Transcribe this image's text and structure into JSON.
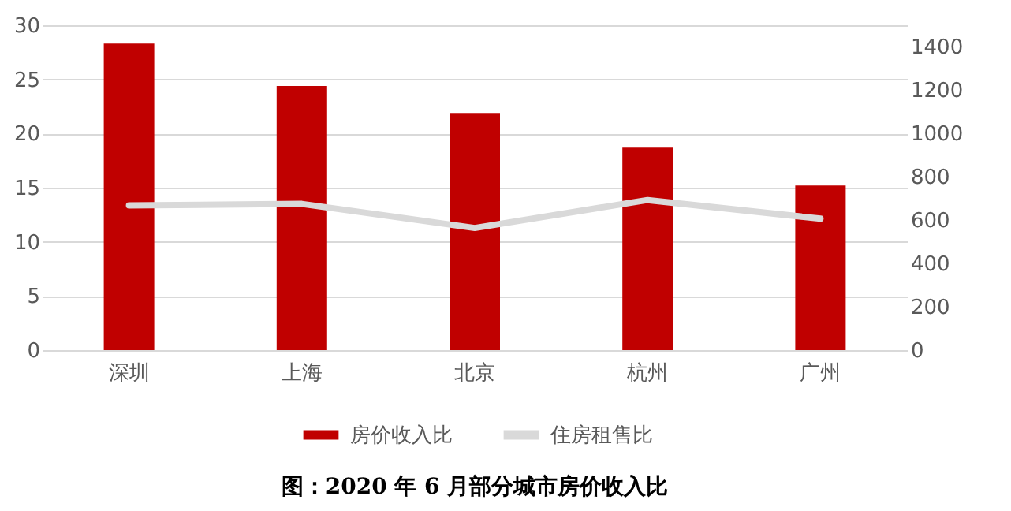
{
  "chart_data": {
    "type": "bar",
    "title": "图：2020 年 6 月部分城市房价收入比",
    "categories": [
      "深圳",
      "上海",
      "北京",
      "杭州",
      "广州"
    ],
    "series": [
      {
        "name": "房价收入比",
        "color": "#c00000",
        "values": [
          28.3,
          24.4,
          21.9,
          18.7,
          15.2
        ]
      },
      {
        "name": "住房租售比",
        "type": "line",
        "axis": "y2",
        "color": "#d9d9d9",
        "values": [
          668,
          675,
          564,
          693,
          607
        ]
      }
    ],
    "ylim": [
      0,
      30
    ],
    "yticks": [
      0,
      5,
      10,
      15,
      20,
      25,
      30
    ],
    "y2lim": [
      0,
      1500
    ],
    "y2ticks": [
      0,
      200,
      400,
      600,
      800,
      1000,
      1200,
      1400
    ],
    "grid": "y",
    "legend": "bottom"
  }
}
